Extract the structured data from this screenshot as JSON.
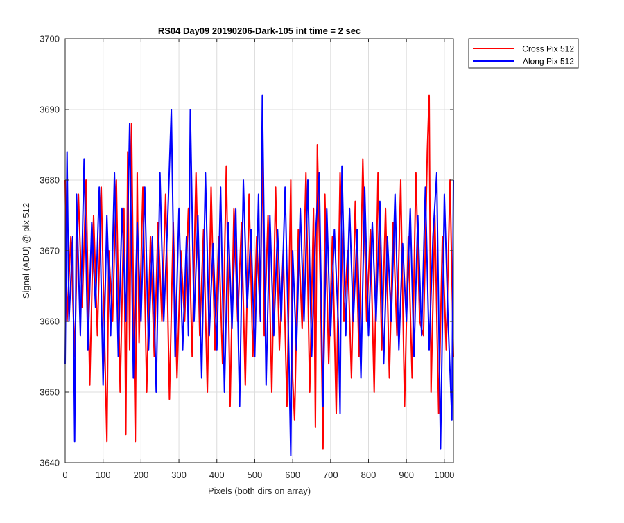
{
  "chart_data": {
    "type": "line",
    "title": "RS04 Day09 20190206-Dark-105 int time = 2 sec",
    "xlabel": "Pixels (both dirs on array)",
    "ylabel": "Signal (ADU) @ pix 512",
    "xlim": [
      0,
      1024
    ],
    "ylim": [
      3640,
      3700
    ],
    "xticks": [
      0,
      100,
      200,
      300,
      400,
      500,
      600,
      700,
      800,
      900,
      1000
    ],
    "yticks": [
      3640,
      3650,
      3660,
      3670,
      3680,
      3690,
      3700
    ],
    "grid": true,
    "legend_position": "outside-top-right",
    "series": [
      {
        "name": "Cross Pix 512",
        "color": "#ff0000",
        "x": [
          0,
          5,
          15,
          25,
          35,
          45,
          55,
          65,
          75,
          85,
          95,
          105,
          110,
          115,
          125,
          135,
          145,
          155,
          160,
          165,
          170,
          175,
          180,
          185,
          190,
          195,
          205,
          215,
          225,
          235,
          245,
          255,
          265,
          275,
          285,
          295,
          305,
          315,
          325,
          335,
          345,
          355,
          365,
          375,
          385,
          395,
          405,
          415,
          425,
          435,
          445,
          455,
          465,
          475,
          485,
          495,
          505,
          515,
          520,
          525,
          535,
          545,
          555,
          565,
          575,
          585,
          595,
          600,
          605,
          615,
          625,
          635,
          645,
          655,
          660,
          665,
          675,
          680,
          685,
          695,
          705,
          715,
          725,
          735,
          745,
          755,
          765,
          775,
          785,
          795,
          805,
          815,
          825,
          835,
          845,
          855,
          865,
          875,
          885,
          895,
          905,
          915,
          925,
          935,
          945,
          955,
          960,
          965,
          975,
          985,
          995,
          1005,
          1015,
          1024
        ],
        "y": [
          3680,
          3660,
          3672,
          3655,
          3678,
          3662,
          3680,
          3651,
          3675,
          3658,
          3679,
          3655,
          3643,
          3670,
          3660,
          3680,
          3650,
          3676,
          3644,
          3684,
          3656,
          3688,
          3664,
          3643,
          3681,
          3657,
          3679,
          3650,
          3672,
          3655,
          3674,
          3660,
          3678,
          3649,
          3674,
          3652,
          3670,
          3660,
          3676,
          3655,
          3681,
          3658,
          3673,
          3650,
          3679,
          3656,
          3672,
          3654,
          3682,
          3648,
          3676,
          3660,
          3674,
          3651,
          3678,
          3655,
          3672,
          3660,
          3687,
          3658,
          3675,
          3650,
          3679,
          3656,
          3670,
          3648,
          3680,
          3652,
          3646,
          3673,
          3659,
          3681,
          3650,
          3676,
          3645,
          3685,
          3660,
          3642,
          3678,
          3654,
          3672,
          3647,
          3681,
          3660,
          3670,
          3652,
          3677,
          3655,
          3683,
          3660,
          3673,
          3650,
          3681,
          3656,
          3676,
          3652,
          3674,
          3658,
          3680,
          3648,
          3672,
          3652,
          3681,
          3660,
          3658,
          3684,
          3692,
          3650,
          3675,
          3647,
          3672,
          3656,
          3680,
          3655
        ]
      },
      {
        "name": "Along Pix 512",
        "color": "#0000ff",
        "x": [
          0,
          5,
          10,
          20,
          25,
          30,
          40,
          50,
          60,
          70,
          80,
          90,
          100,
          110,
          120,
          130,
          140,
          150,
          160,
          170,
          180,
          190,
          200,
          210,
          220,
          230,
          240,
          250,
          260,
          270,
          280,
          290,
          300,
          310,
          320,
          325,
          330,
          340,
          350,
          360,
          370,
          380,
          390,
          400,
          410,
          420,
          430,
          440,
          450,
          460,
          470,
          480,
          490,
          500,
          510,
          515,
          520,
          530,
          540,
          550,
          560,
          570,
          580,
          590,
          595,
          600,
          610,
          620,
          630,
          640,
          650,
          660,
          670,
          680,
          690,
          700,
          710,
          720,
          725,
          730,
          740,
          750,
          760,
          770,
          780,
          790,
          800,
          810,
          820,
          830,
          840,
          850,
          860,
          870,
          880,
          890,
          900,
          910,
          920,
          930,
          940,
          950,
          960,
          970,
          980,
          990,
          1000,
          1010,
          1020,
          1024
        ],
        "y": [
          3654,
          3684,
          3660,
          3672,
          3643,
          3678,
          3658,
          3683,
          3656,
          3674,
          3662,
          3679,
          3651,
          3675,
          3658,
          3681,
          3655,
          3676,
          3660,
          3688,
          3652,
          3674,
          3660,
          3679,
          3656,
          3672,
          3650,
          3681,
          3660,
          3674,
          3690,
          3655,
          3676,
          3656,
          3672,
          3658,
          3690,
          3660,
          3675,
          3652,
          3681,
          3658,
          3671,
          3656,
          3679,
          3650,
          3674,
          3659,
          3676,
          3648,
          3680,
          3662,
          3673,
          3655,
          3678,
          3660,
          3692,
          3651,
          3675,
          3658,
          3673,
          3660,
          3679,
          3655,
          3641,
          3670,
          3656,
          3676,
          3660,
          3680,
          3655,
          3672,
          3681,
          3648,
          3676,
          3658,
          3673,
          3660,
          3647,
          3682,
          3658,
          3676,
          3660,
          3673,
          3652,
          3679,
          3658,
          3674,
          3660,
          3677,
          3654,
          3672,
          3660,
          3678,
          3656,
          3671,
          3660,
          3676,
          3655,
          3675,
          3658,
          3679,
          3656,
          3672,
          3681,
          3642,
          3678,
          3660,
          3646,
          3680
        ]
      }
    ]
  }
}
